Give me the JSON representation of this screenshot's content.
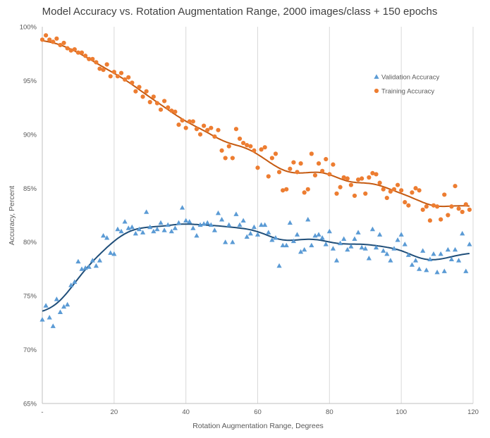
{
  "chart_data": {
    "type": "scatter",
    "title": "Model Accuracy vs. Rotation Augmentation Range, 2000 images/class + 150 epochs",
    "xlabel": "Rotation Augmentation Range, Degrees",
    "ylabel": "Accuracy, Percent",
    "xlim": [
      0,
      120
    ],
    "ylim": [
      65,
      100
    ],
    "x_tick_labels": [
      "-",
      "20",
      "40",
      "60",
      "80",
      "100",
      "120"
    ],
    "y_tick_labels": [
      "65%",
      "70%",
      "75%",
      "80%",
      "85%",
      "90%",
      "95%",
      "100%"
    ],
    "grid": "vertical",
    "legend_position": "right",
    "series": [
      {
        "name": "Validation Accuracy",
        "color": "#5b9bd5",
        "trend_color": "#1f4e79",
        "marker": "triangle",
        "x": [
          0,
          1,
          2,
          3,
          4,
          5,
          6,
          7,
          8,
          9,
          10,
          11,
          12,
          13,
          14,
          15,
          16,
          17,
          18,
          19,
          20,
          21,
          22,
          23,
          24,
          25,
          26,
          27,
          28,
          29,
          30,
          31,
          32,
          33,
          34,
          35,
          36,
          37,
          38,
          39,
          40,
          41,
          42,
          43,
          44,
          45,
          46,
          47,
          48,
          49,
          50,
          51,
          52,
          53,
          54,
          55,
          56,
          57,
          58,
          59,
          60,
          61,
          62,
          63,
          64,
          65,
          66,
          67,
          68,
          69,
          70,
          71,
          72,
          73,
          74,
          75,
          76,
          77,
          78,
          79,
          80,
          81,
          82,
          83,
          84,
          85,
          86,
          87,
          88,
          89,
          90,
          91,
          92,
          93,
          94,
          95,
          96,
          97,
          98,
          99,
          100,
          101,
          102,
          103,
          104,
          105,
          106,
          107,
          108,
          109,
          110,
          111,
          112,
          113,
          114,
          115,
          116,
          117,
          118,
          119
        ],
        "y": [
          72.8,
          74.1,
          73.0,
          72.2,
          74.7,
          73.5,
          74.0,
          74.2,
          76.0,
          76.3,
          78.2,
          77.5,
          77.6,
          77.7,
          78.3,
          77.8,
          78.3,
          80.6,
          80.4,
          79.0,
          78.9,
          81.2,
          81.0,
          81.9,
          81.3,
          81.4,
          80.8,
          81.2,
          80.9,
          82.8,
          81.4,
          81.0,
          81.2,
          81.8,
          81.1,
          81.6,
          81.0,
          81.3,
          81.8,
          83.2,
          82.0,
          81.9,
          81.3,
          80.6,
          81.6,
          81.7,
          81.8,
          81.6,
          81.1,
          82.7,
          82.1,
          80.0,
          81.6,
          80.0,
          82.6,
          81.6,
          82.0,
          80.5,
          80.8,
          81.4,
          80.7,
          81.6,
          81.6,
          80.9,
          80.2,
          80.4,
          77.8,
          79.7,
          79.7,
          81.8,
          80.1,
          80.7,
          79.1,
          79.3,
          82.1,
          79.7,
          80.6,
          80.7,
          80.4,
          79.8,
          81.0,
          79.4,
          78.3,
          79.9,
          80.3,
          79.3,
          79.6,
          80.3,
          80.9,
          79.5,
          79.4,
          78.5,
          81.2,
          79.5,
          80.7,
          79.2,
          78.9,
          78.3,
          79.4,
          80.2,
          80.7,
          79.8,
          78.8,
          77.9,
          78.3,
          77.5,
          79.2,
          77.4,
          78.4,
          78.9,
          77.2,
          78.9,
          77.3,
          79.3,
          78.4,
          79.3,
          78.3,
          80.8,
          77.3,
          79.8
        ]
      },
      {
        "name": "Training Accuracy",
        "color": "#ed7d31",
        "trend_color": "#c55a11",
        "marker": "circle",
        "x": [
          0,
          1,
          2,
          3,
          4,
          5,
          6,
          7,
          8,
          9,
          10,
          11,
          12,
          13,
          14,
          15,
          16,
          17,
          18,
          19,
          20,
          21,
          22,
          23,
          24,
          25,
          26,
          27,
          28,
          29,
          30,
          31,
          32,
          33,
          34,
          35,
          36,
          37,
          38,
          39,
          40,
          41,
          42,
          43,
          44,
          45,
          46,
          47,
          48,
          49,
          50,
          51,
          52,
          53,
          54,
          55,
          56,
          57,
          58,
          59,
          60,
          61,
          62,
          63,
          64,
          65,
          66,
          67,
          68,
          69,
          70,
          71,
          72,
          73,
          74,
          75,
          76,
          77,
          78,
          79,
          80,
          81,
          82,
          83,
          84,
          85,
          86,
          87,
          88,
          89,
          90,
          91,
          92,
          93,
          94,
          95,
          96,
          97,
          98,
          99,
          100,
          101,
          102,
          103,
          104,
          105,
          106,
          107,
          108,
          109,
          110,
          111,
          112,
          113,
          114,
          115,
          116,
          117,
          118,
          119
        ],
        "y": [
          98.8,
          99.2,
          98.8,
          98.6,
          98.9,
          98.3,
          98.5,
          98.0,
          97.8,
          97.9,
          97.6,
          97.6,
          97.3,
          97.0,
          97.0,
          96.7,
          96.1,
          96.0,
          96.5,
          95.4,
          95.8,
          95.4,
          95.7,
          95.1,
          95.3,
          94.8,
          94.0,
          94.4,
          93.5,
          94.0,
          93.0,
          93.5,
          92.9,
          92.3,
          93.1,
          92.5,
          92.2,
          92.1,
          90.9,
          91.3,
          90.6,
          91.2,
          91.2,
          90.5,
          90.0,
          90.8,
          90.4,
          90.6,
          89.8,
          90.4,
          88.5,
          87.8,
          88.9,
          87.8,
          90.5,
          89.6,
          89.2,
          89.0,
          88.9,
          88.5,
          86.9,
          88.6,
          88.8,
          86.1,
          87.8,
          88.2,
          86.5,
          84.8,
          84.9,
          86.8,
          87.4,
          86.5,
          87.3,
          84.6,
          84.9,
          88.2,
          86.2,
          87.3,
          86.6,
          87.7,
          86.3,
          87.2,
          84.5,
          85.1,
          86.0,
          85.9,
          85.3,
          84.3,
          85.8,
          85.9,
          84.5,
          86.0,
          86.4,
          86.3,
          85.5,
          84.9,
          84.1,
          84.7,
          84.9,
          85.3,
          84.8,
          83.7,
          83.4,
          84.6,
          85.0,
          84.8,
          83.0,
          83.3,
          82.0,
          83.4,
          83.3,
          82.1,
          84.4,
          82.5,
          83.3,
          85.2,
          83.1,
          82.8,
          83.5,
          83.0
        ]
      }
    ]
  }
}
